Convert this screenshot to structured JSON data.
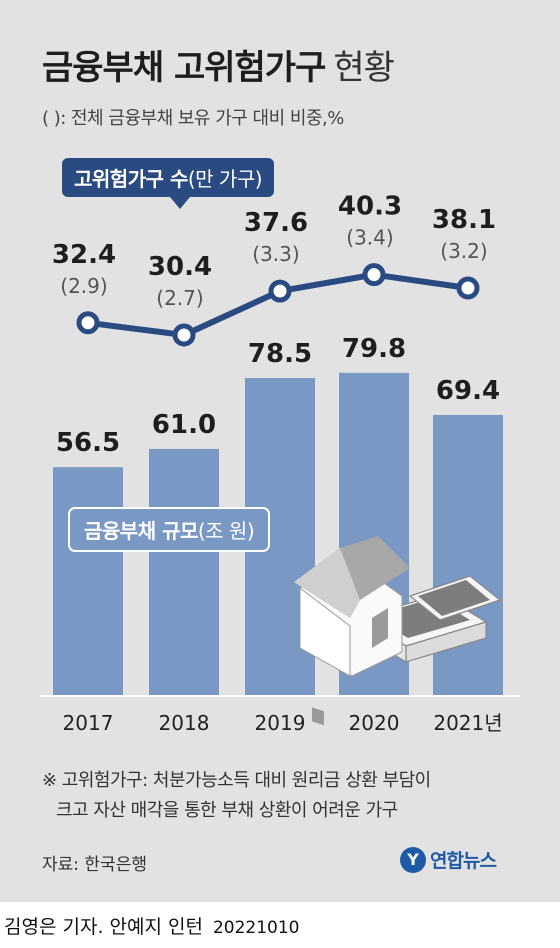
{
  "header": {
    "title": "금융부채 고위험가구",
    "title_suffix": "현황",
    "subtitle": "( ): 전체 금융부채 보유 가구 대비 비중,%"
  },
  "chart_data": {
    "type": "bar",
    "categories": [
      "2017",
      "2018",
      "2019",
      "2020",
      "2021년"
    ],
    "series": [
      {
        "name": "금융부채 규모",
        "unit": "(조 원)",
        "type": "bar",
        "values": [
          56.5,
          61.0,
          78.5,
          79.8,
          69.4
        ],
        "labels": [
          "56.5",
          "61.0",
          "78.5",
          "79.8",
          "69.4"
        ],
        "color": "#7a98c4"
      },
      {
        "name": "고위험가구 수",
        "unit": "(만 가구)",
        "type": "line",
        "values": [
          32.4,
          30.4,
          37.6,
          40.3,
          38.1
        ],
        "labels": [
          "32.4",
          "30.4",
          "37.6",
          "40.3",
          "38.1"
        ],
        "shares": [
          "(2.9)",
          "(2.7)",
          "(3.3)",
          "(3.4)",
          "(3.2)"
        ],
        "color": "#2a4a82"
      }
    ]
  },
  "note": {
    "line1": "※ 고위험가구: 처분가능소득 대비 원리금 상환 부담이",
    "line2": "크고 자산 매각을 통한 부채 상환이 어려운 가구"
  },
  "source": "자료: 한국은행",
  "logo": {
    "mark": "Y",
    "text": "연합뉴스"
  },
  "credit": {
    "author": "김영은 기자. 안예지 인턴",
    "date": "20221010"
  },
  "colors": {
    "background": "#e2e2e2",
    "bar": "#7a98c4",
    "line": "#2a4a82",
    "logo": "#1f5aa6"
  }
}
